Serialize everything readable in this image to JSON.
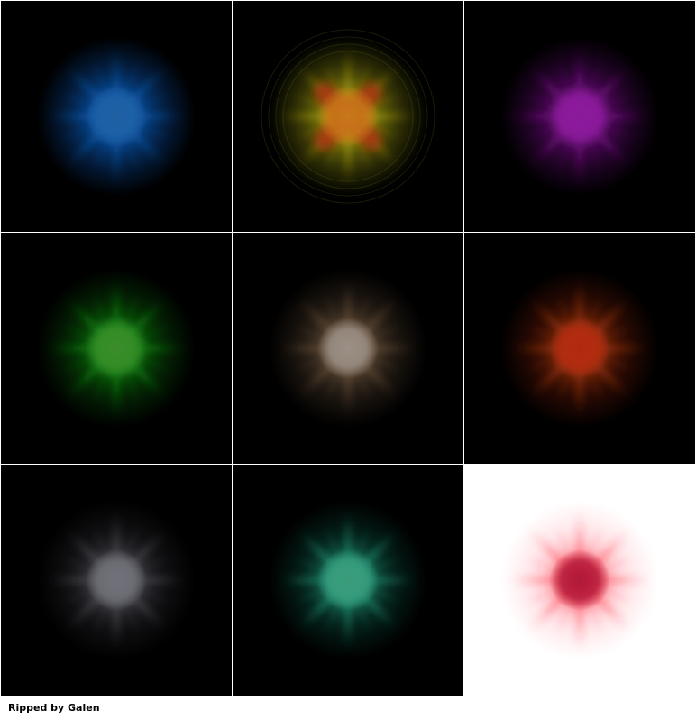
{
  "sprites": [
    {
      "name": "blue",
      "background": "#000000",
      "core": "#1f5fa0",
      "glow": "#0a4fa8",
      "rays": "#0d6fd0",
      "rings": false
    },
    {
      "name": "yellow",
      "background": "#000000",
      "core": "#c8781a",
      "glow": "#8a8a10",
      "rays": "#d0c015",
      "cross": "#b02a10",
      "rings": true
    },
    {
      "name": "purple",
      "background": "#000000",
      "core": "#8a1a9a",
      "glow": "#5a0a6a",
      "rays": "#a01ab0",
      "rings": false
    },
    {
      "name": "green",
      "background": "#000000",
      "core": "#3a8a2a",
      "glow": "#0a5a0a",
      "rays": "#1ab01a",
      "rings": false
    },
    {
      "name": "tan",
      "background": "#000000",
      "core": "#9a9088",
      "glow": "#4a3a2a",
      "rays": "#8a6a4a",
      "rings": false
    },
    {
      "name": "red",
      "background": "#000000",
      "core": "#b02810",
      "glow": "#6a1a08",
      "rays": "#d04a10",
      "rings": false
    },
    {
      "name": "gray",
      "background": "#000000",
      "core": "#707078",
      "glow": "#2a2a30",
      "rays": "#6a6a72",
      "rings": false
    },
    {
      "name": "teal",
      "background": "#000000",
      "core": "#3a9a7a",
      "glow": "#0a4a3a",
      "rays": "#2ac09a",
      "rings": false
    },
    {
      "name": "crimson",
      "background": "#ffffff",
      "core": "#b01a3a",
      "glow": "#ffc0c8",
      "rays": "#ff2a3a",
      "rings": false
    }
  ],
  "credit": "Ripped by Galen"
}
